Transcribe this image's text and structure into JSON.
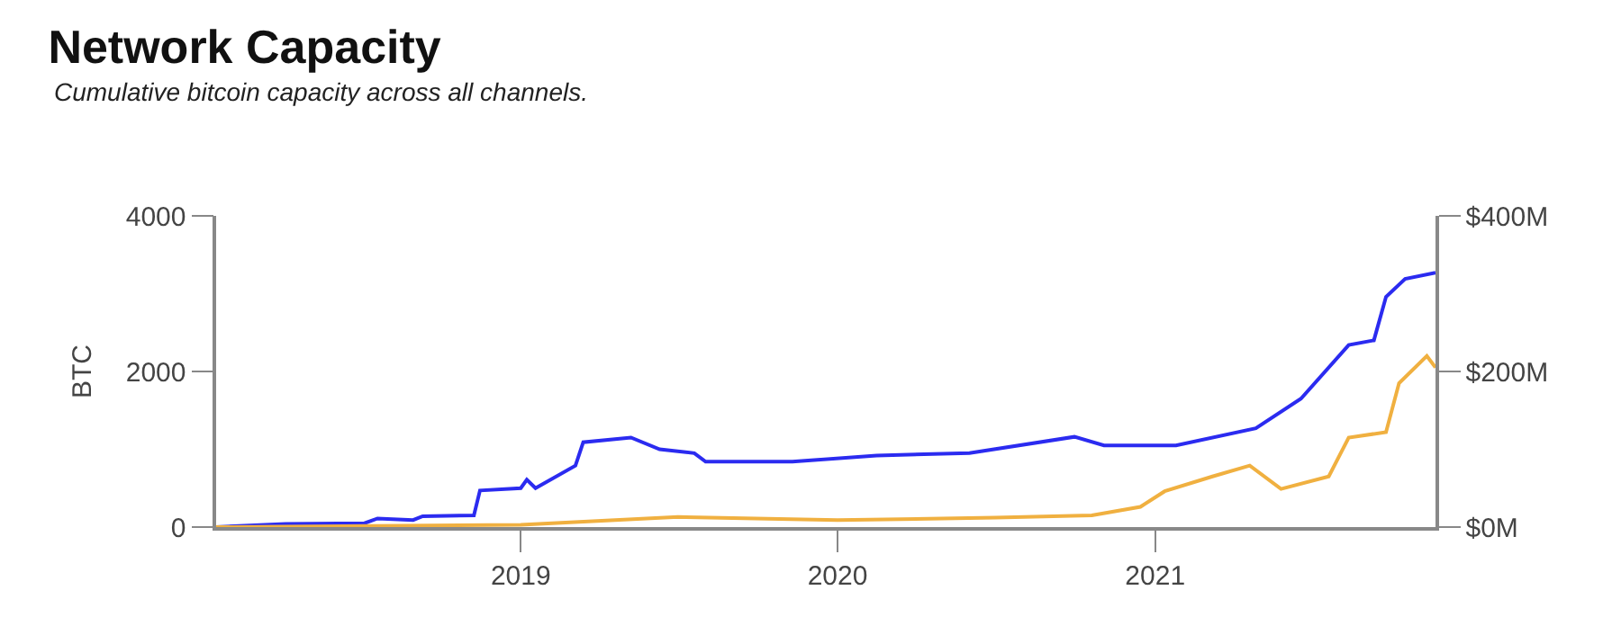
{
  "chart_data": {
    "type": "line",
    "title": "Network Capacity",
    "subtitle": "Cumulative bitcoin capacity across all channels.",
    "ylabel": "BTC",
    "xlim": [
      "2018-01-15",
      "2021-11-20"
    ],
    "xticks": [
      {
        "value": "2019-01-01",
        "label": "2019"
      },
      {
        "value": "2020-01-01",
        "label": "2020"
      },
      {
        "value": "2021-01-01",
        "label": "2021"
      }
    ],
    "ylim": [
      0,
      4000
    ],
    "yticks": [
      0,
      2000,
      4000
    ],
    "y2lim": [
      0,
      400
    ],
    "y2ticks": [
      {
        "value": 0,
        "label": "$0M"
      },
      {
        "value": 200,
        "label": "$200M"
      },
      {
        "value": 400,
        "label": "$400M"
      }
    ],
    "marker": "none",
    "line_style": "solid",
    "series": [
      {
        "color": "#2b2bf0",
        "x": [
          "2018-01-15",
          "2018-04-05",
          "2018-07-05",
          "2018-07-20",
          "2018-08-30",
          "2018-09-10",
          "2018-11-08",
          "2018-11-15",
          "2019-01-01",
          "2019-01-08",
          "2019-01-18",
          "2019-03-05",
          "2019-03-14",
          "2019-05-08",
          "2019-06-10",
          "2019-07-20",
          "2019-08-02",
          "2019-11-10",
          "2020-02-15",
          "2020-06-01",
          "2020-09-30",
          "2020-11-03",
          "2021-01-25",
          "2021-04-27",
          "2021-06-18",
          "2021-08-12",
          "2021-09-10",
          "2021-09-24",
          "2021-10-16",
          "2021-11-20"
        ],
        "values": [
          0,
          40,
          50,
          110,
          90,
          140,
          150,
          470,
          500,
          610,
          500,
          790,
          1090,
          1150,
          1000,
          950,
          840,
          840,
          920,
          950,
          1160,
          1050,
          1050,
          1270,
          1650,
          2340,
          2400,
          2960,
          3190,
          3270
        ]
      },
      {
        "color": "#f0b040",
        "axis": "y2",
        "x": [
          "2018-01-15",
          "2019-01-01",
          "2019-07-01",
          "2020-01-01",
          "2020-07-01",
          "2020-10-20",
          "2020-12-15",
          "2021-01-12",
          "2021-03-08",
          "2021-04-20",
          "2021-05-26",
          "2021-07-20",
          "2021-08-12",
          "2021-09-24",
          "2021-10-09",
          "2021-11-10",
          "2021-11-20"
        ],
        "values": [
          0,
          3,
          13,
          9,
          12,
          15,
          26,
          46,
          65,
          79,
          49,
          65,
          115,
          122,
          185,
          220,
          205
        ]
      }
    ]
  }
}
